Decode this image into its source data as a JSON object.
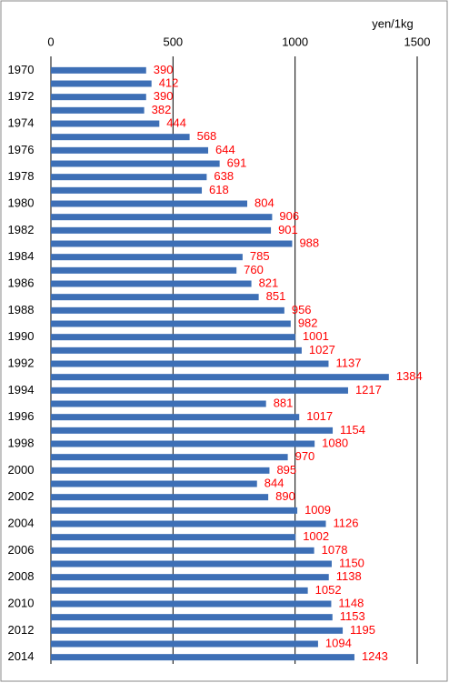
{
  "chart_data": {
    "type": "bar",
    "orientation": "horizontal",
    "axis_label": "yen/1kg",
    "categories": [
      "1970",
      null,
      "1972",
      null,
      "1974",
      null,
      "1976",
      null,
      "1978",
      null,
      "1980",
      null,
      "1982",
      null,
      "1984",
      null,
      "1986",
      null,
      "1988",
      null,
      "1990",
      null,
      "1992",
      null,
      "1994",
      null,
      "1996",
      null,
      "1998",
      null,
      "2000",
      null,
      "2002",
      null,
      "2004",
      null,
      "2006",
      null,
      "2008",
      null,
      "2010",
      null,
      "2012",
      null,
      "2014"
    ],
    "values": [
      390,
      412,
      390,
      382,
      444,
      568,
      644,
      691,
      638,
      618,
      804,
      906,
      901,
      988,
      785,
      760,
      821,
      851,
      956,
      982,
      1001,
      1027,
      1137,
      1384,
      1217,
      881,
      1017,
      1154,
      1080,
      970,
      895,
      844,
      890,
      1009,
      1126,
      1002,
      1078,
      1150,
      1138,
      1052,
      1148,
      1153,
      1195,
      1094,
      1243
    ],
    "color": "#3d6fb6",
    "value_label_color": "#ff0000",
    "xlim": [
      0,
      1500
    ],
    "xticks": [
      0,
      500,
      1000,
      1500
    ],
    "grid": true
  }
}
